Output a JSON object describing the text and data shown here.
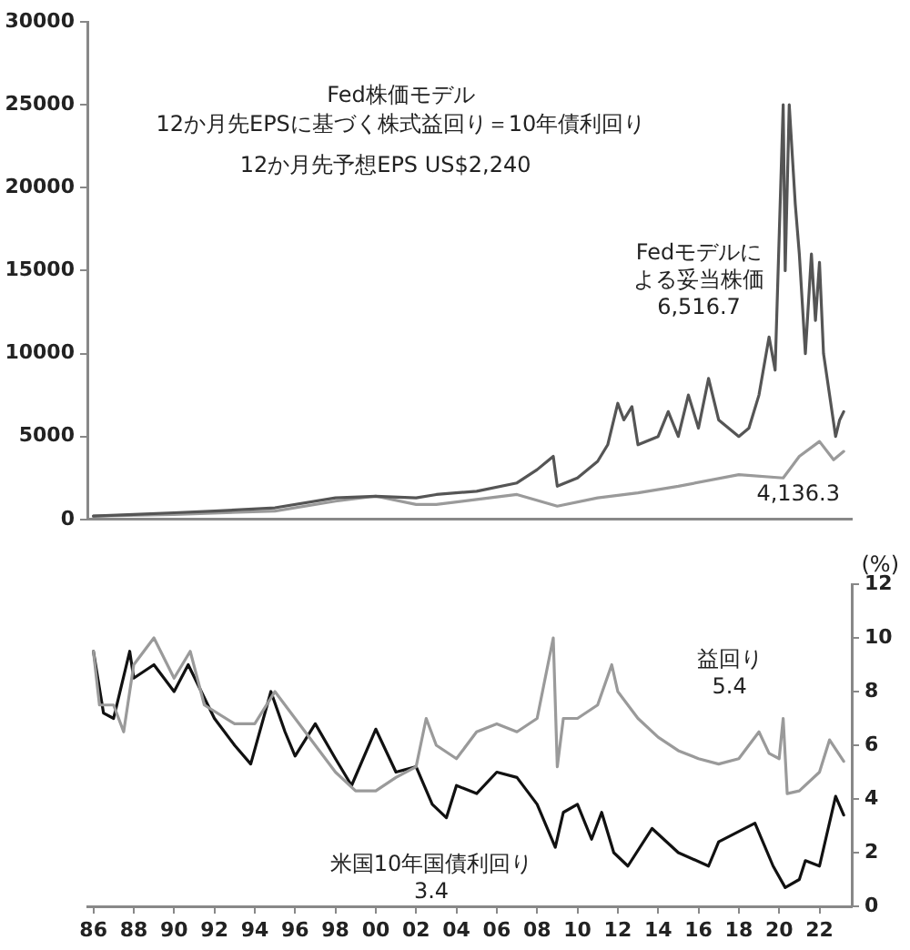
{
  "chart_data": [
    {
      "type": "line",
      "title": "Fed株価モデル",
      "subtitle": "12か月先EPSに基づく株式益回り＝10年債利回り",
      "annotations": [
        "12か月先予想EPS US$2,240",
        "Fedモデルによる妥当株価\n6,516.7",
        "4,136.3"
      ],
      "xlim": [
        1985.7,
        2023.6
      ],
      "ylim": [
        0,
        30000
      ],
      "yticks": [
        0,
        5000,
        10000,
        15000,
        20000,
        25000,
        30000
      ],
      "tick_labels": "y",
      "grid": false,
      "legend": false,
      "marker": "none",
      "series": [
        {
          "color": "#555555",
          "x": [
            1986,
            1988,
            1990,
            1992,
            1995,
            1998,
            2000,
            2002,
            2003,
            2005,
            2007,
            2008,
            2008.8,
            2009,
            2010,
            2011,
            2011.5,
            2012,
            2012.3,
            2012.7,
            2013,
            2014,
            2014.5,
            2015,
            2015.5,
            2016,
            2016.5,
            2017,
            2018,
            2018.5,
            2019,
            2019.5,
            2019.8,
            2020.2,
            2020.3,
            2020.5,
            2020.8,
            2021,
            2021.3,
            2021.6,
            2021.8,
            2022,
            2022.2,
            2022.5,
            2022.8,
            2023,
            2023.2
          ],
          "values": [
            200,
            300,
            400,
            500,
            700,
            1300,
            1400,
            1300,
            1500,
            1700,
            2200,
            3000,
            3800,
            2000,
            2500,
            3500,
            4500,
            7000,
            6000,
            6800,
            4500,
            5000,
            6500,
            5000,
            7500,
            5500,
            8500,
            6000,
            5000,
            5500,
            7500,
            11000,
            9000,
            25000,
            15000,
            25000,
            19000,
            16000,
            10000,
            16000,
            12000,
            15500,
            10000,
            7500,
            5000,
            6000,
            6500
          ]
        },
        {
          "color": "#9a9a9a",
          "x": [
            1986,
            1990,
            1995,
            1998,
            2000,
            2002,
            2003,
            2005,
            2007,
            2009,
            2011,
            2013,
            2015,
            2018,
            2020.2,
            2021,
            2022,
            2022.7,
            2023.2
          ],
          "values": [
            200,
            300,
            500,
            1100,
            1400,
            900,
            900,
            1200,
            1500,
            800,
            1300,
            1600,
            2000,
            2700,
            2500,
            3800,
            4700,
            3600,
            4100
          ]
        }
      ]
    },
    {
      "type": "line",
      "y2label": "(%)",
      "annotations": [
        "益回り\n5.4",
        "米国10年国債利回り\n3.4"
      ],
      "xlim": [
        1985.7,
        2023.6
      ],
      "xticks": [
        {
          "value": 1986,
          "label": "86"
        },
        {
          "value": 1988,
          "label": "88"
        },
        {
          "value": 1990,
          "label": "90"
        },
        {
          "value": 1992,
          "label": "92"
        },
        {
          "value": 1994,
          "label": "94"
        },
        {
          "value": 1996,
          "label": "96"
        },
        {
          "value": 1998,
          "label": "98"
        },
        {
          "value": 2000,
          "label": "00"
        },
        {
          "value": 2002,
          "label": "02"
        },
        {
          "value": 2004,
          "label": "04"
        },
        {
          "value": 2006,
          "label": "06"
        },
        {
          "value": 2008,
          "label": "08"
        },
        {
          "value": 2010,
          "label": "10"
        },
        {
          "value": 2012,
          "label": "12"
        },
        {
          "value": 2014,
          "label": "14"
        },
        {
          "value": 2016,
          "label": "16"
        },
        {
          "value": 2018,
          "label": "18"
        },
        {
          "value": 2020,
          "label": "20"
        },
        {
          "value": 2022,
          "label": "22"
        }
      ],
      "y2lim": [
        0,
        12
      ],
      "y2ticks": [
        0,
        2,
        4,
        6,
        8,
        10,
        12
      ],
      "grid": false,
      "legend": false,
      "marker": "none",
      "series": [
        {
          "color": "#9a9a9a",
          "axis": "y2",
          "x": [
            1986,
            1986.3,
            1987,
            1987.5,
            1988,
            1989,
            1990,
            1990.8,
            1991.5,
            1993,
            1994,
            1995,
            1996,
            1997,
            1998,
            1999,
            2000,
            2001,
            2002,
            2002.5,
            2003,
            2004,
            2005,
            2006,
            2007,
            2008,
            2008.8,
            2009,
            2009.3,
            2010,
            2011,
            2011.7,
            2012,
            2013,
            2014,
            2015,
            2016,
            2017,
            2018,
            2019,
            2019.5,
            2020,
            2020.2,
            2020.4,
            2021,
            2022,
            2022.5,
            2023.2
          ],
          "values": [
            9.5,
            7.5,
            7.5,
            6.5,
            9,
            10,
            8.5,
            9.5,
            7.5,
            6.8,
            6.8,
            8,
            7,
            6,
            5,
            4.3,
            4.3,
            4.8,
            5.2,
            7,
            6,
            5.5,
            6.5,
            6.8,
            6.5,
            7,
            10,
            5.2,
            7,
            7,
            7.5,
            9,
            8,
            7,
            6.3,
            5.8,
            5.5,
            5.3,
            5.5,
            6.5,
            5.7,
            5.5,
            7,
            4.2,
            4.3,
            5,
            6.2,
            5.4
          ]
        },
        {
          "color": "#111111",
          "axis": "y2",
          "x": [
            1986,
            1986.5,
            1987,
            1987.8,
            1988,
            1989,
            1990,
            1990.7,
            1992,
            1993,
            1993.8,
            1994.8,
            1995.5,
            1996,
            1997,
            1998,
            1998.8,
            2000,
            2001,
            2002,
            2002.8,
            2003.5,
            2004,
            2005,
            2006,
            2007,
            2008,
            2008.9,
            2009.3,
            2010,
            2010.7,
            2011.2,
            2011.8,
            2012.5,
            2013.7,
            2015,
            2016.5,
            2017,
            2018.8,
            2019.7,
            2020.3,
            2021,
            2021.3,
            2022,
            2022.8,
            2023.2
          ],
          "values": [
            9.5,
            7.2,
            7,
            9.5,
            8.5,
            9,
            8,
            9,
            7,
            6,
            5.3,
            8,
            6.5,
            5.6,
            6.8,
            5.5,
            4.5,
            6.6,
            5,
            5.2,
            3.8,
            3.3,
            4.5,
            4.2,
            5,
            4.8,
            3.8,
            2.2,
            3.5,
            3.8,
            2.5,
            3.5,
            2,
            1.5,
            2.9,
            2,
            1.5,
            2.4,
            3.1,
            1.5,
            0.7,
            1,
            1.7,
            1.5,
            4.1,
            3.4
          ]
        }
      ]
    }
  ]
}
